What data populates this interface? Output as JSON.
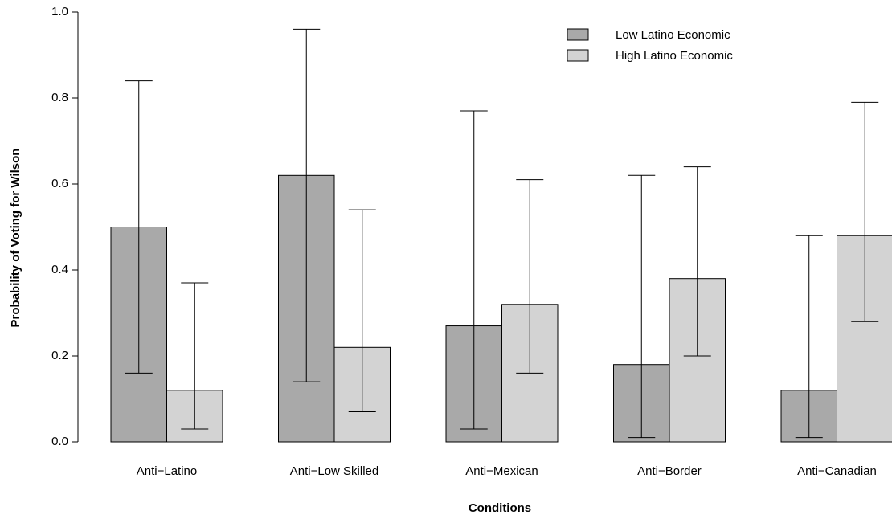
{
  "chart_data": {
    "type": "bar",
    "title": "",
    "xlabel": "Conditions",
    "ylabel": "Probability of Voting for Wilson",
    "ylim": [
      0,
      1.0
    ],
    "yticks": [
      "0.0",
      "0.2",
      "0.4",
      "0.6",
      "0.8",
      "1.0"
    ],
    "categories": [
      "Anti−Latino",
      "Anti−Low Skilled",
      "Anti−Mexican",
      "Anti−Border",
      "Anti−Canadian"
    ],
    "series": [
      {
        "name": "Low Latino Economic",
        "color": "#a9a9a9",
        "values": [
          0.5,
          0.62,
          0.27,
          0.18,
          0.12
        ],
        "ci_low": [
          0.16,
          0.14,
          0.03,
          0.01,
          0.01
        ],
        "ci_high": [
          0.84,
          0.96,
          0.77,
          0.62,
          0.48
        ]
      },
      {
        "name": "High Latino Economic",
        "color": "#d3d3d3",
        "values": [
          0.12,
          0.22,
          0.32,
          0.38,
          0.48
        ],
        "ci_low": [
          0.03,
          0.07,
          0.16,
          0.2,
          0.28
        ],
        "ci_high": [
          0.37,
          0.54,
          0.61,
          0.64,
          0.79
        ]
      }
    ],
    "legend_position": "top-right",
    "grid": false
  }
}
